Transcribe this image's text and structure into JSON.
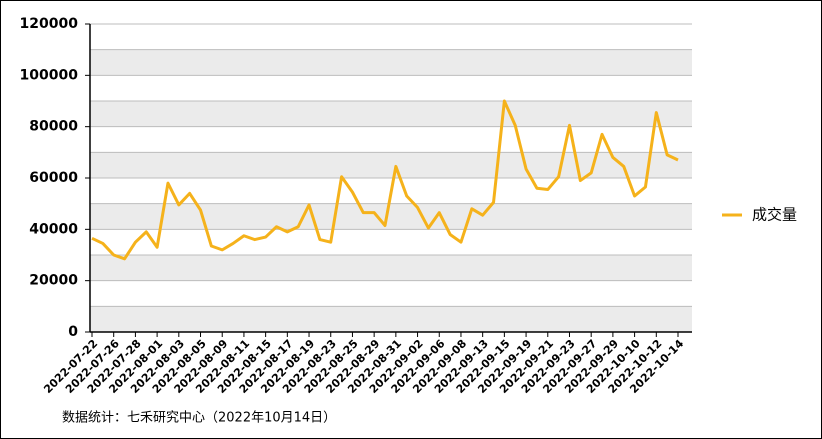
{
  "chart_data": {
    "type": "line",
    "categories": [
      "2022-07-22",
      null,
      "2022-07-26",
      null,
      "2022-07-28",
      null,
      "2022-08-01",
      null,
      "2022-08-03",
      null,
      "2022-08-05",
      null,
      "2022-08-09",
      null,
      "2022-08-11",
      null,
      "2022-08-15",
      null,
      "2022-08-17",
      null,
      "2022-08-19",
      null,
      "2022-08-23",
      null,
      "2022-08-25",
      null,
      "2022-08-29",
      null,
      "2022-08-31",
      null,
      "2022-09-02",
      null,
      "2022-09-06",
      null,
      "2022-09-08",
      null,
      "2022-09-13",
      null,
      "2022-09-15",
      null,
      "2022-09-19",
      null,
      "2022-09-21",
      null,
      "2022-09-23",
      null,
      "2022-09-27",
      null,
      "2022-09-29",
      null,
      "2022-10-10",
      null,
      "2022-10-12",
      null,
      "2022-10-14"
    ],
    "series": [
      {
        "name": "成交量",
        "color": "#f5b21b",
        "values": [
          36500,
          34500,
          30000,
          28500,
          35000,
          39000,
          33000,
          58000,
          49500,
          54000,
          47500,
          33500,
          32000,
          34500,
          37500,
          36000,
          37000,
          41000,
          39000,
          41000,
          49500,
          36000,
          35000,
          60500,
          54500,
          46500,
          46500,
          41500,
          64500,
          53000,
          48500,
          40500,
          46500,
          38000,
          35000,
          48000,
          45500,
          50500,
          90000,
          80500,
          63500,
          56000,
          55500,
          60500,
          80500,
          59000,
          62000,
          77000,
          68000,
          64500,
          53000,
          56500,
          85500,
          69000,
          67000
        ]
      }
    ],
    "ylim": [
      0,
      120000
    ],
    "yticks": [
      0,
      20000,
      40000,
      60000,
      80000,
      100000,
      120000
    ],
    "grid": true,
    "legend": "right",
    "source": "数据统计：七禾研究中心（2022年10月14日）"
  }
}
